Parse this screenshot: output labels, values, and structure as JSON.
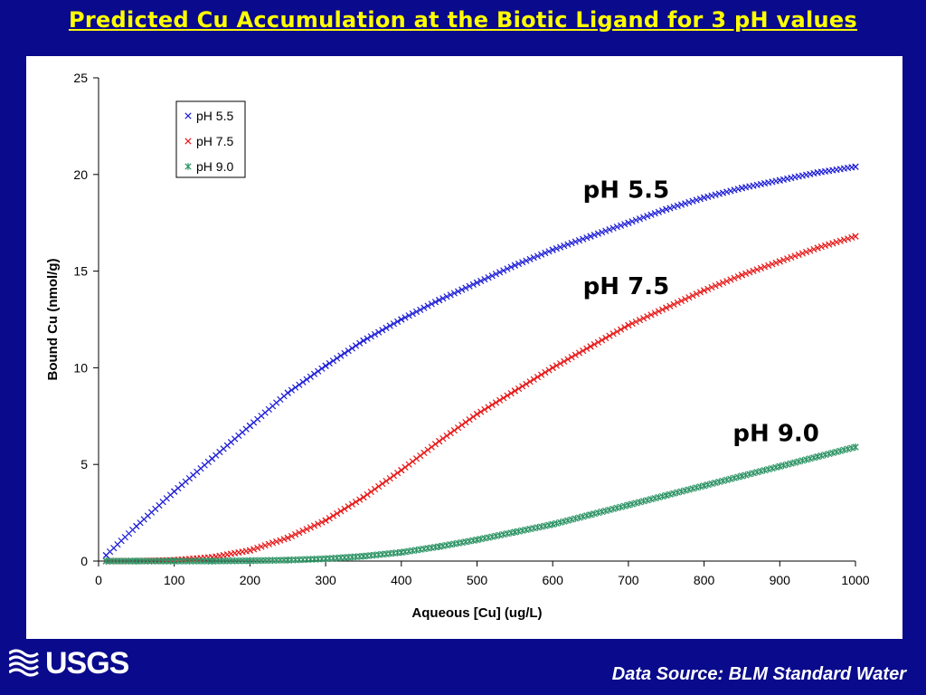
{
  "slide": {
    "title": "Predicted Cu Accumulation at the Biotic Ligand for 3 pH values",
    "source": "Data Source: BLM Standard Water",
    "logo_text": "USGS",
    "background_color": "#0a0a8c",
    "title_color": "#ffff00"
  },
  "chart_data": {
    "type": "scatter",
    "title": "",
    "xlabel": "Aqueous [Cu] (ug/L)",
    "ylabel": "Bound Cu (nmol/g)",
    "xlim": [
      0,
      1000
    ],
    "ylim": [
      0,
      25
    ],
    "x_ticks": [
      "0",
      "100",
      "200",
      "300",
      "400",
      "500",
      "600",
      "700",
      "800",
      "900",
      "1000"
    ],
    "y_ticks": [
      "0",
      "5",
      "10",
      "15",
      "20",
      "25"
    ],
    "grid": false,
    "legend_placement": "top-left",
    "series": [
      {
        "name": "pH 5.5",
        "color": "#1f1fd6",
        "marker": "x",
        "x": [
          10,
          50,
          100,
          150,
          200,
          250,
          300,
          350,
          400,
          450,
          500,
          550,
          600,
          650,
          700,
          750,
          800,
          850,
          900,
          950,
          1000
        ],
        "values": [
          0.3,
          1.8,
          3.6,
          5.3,
          7.0,
          8.7,
          10.1,
          11.4,
          12.5,
          13.5,
          14.4,
          15.3,
          16.1,
          16.8,
          17.5,
          18.2,
          18.8,
          19.3,
          19.7,
          20.1,
          20.4
        ]
      },
      {
        "name": "pH 7.5",
        "color": "#e61919",
        "marker": "x",
        "x": [
          10,
          50,
          100,
          150,
          200,
          250,
          300,
          350,
          400,
          450,
          500,
          550,
          600,
          650,
          700,
          750,
          800,
          850,
          900,
          950,
          1000
        ],
        "values": [
          0.0,
          0.0,
          0.05,
          0.2,
          0.55,
          1.2,
          2.1,
          3.3,
          4.7,
          6.2,
          7.6,
          8.8,
          10.0,
          11.1,
          12.2,
          13.1,
          14.0,
          14.8,
          15.5,
          16.2,
          16.8
        ]
      },
      {
        "name": "pH 9.0",
        "color": "#2e9466",
        "marker": "asterisk",
        "x": [
          10,
          50,
          100,
          150,
          200,
          250,
          300,
          350,
          400,
          450,
          500,
          550,
          600,
          650,
          700,
          750,
          800,
          850,
          900,
          950,
          1000
        ],
        "values": [
          0.0,
          0.0,
          0.0,
          0.0,
          0.02,
          0.05,
          0.12,
          0.25,
          0.45,
          0.75,
          1.1,
          1.5,
          1.9,
          2.4,
          2.9,
          3.4,
          3.9,
          4.4,
          4.9,
          5.4,
          5.9
        ]
      }
    ],
    "annotations": [
      {
        "text": "pH 5.5",
        "x": 640,
        "y": 18.8
      },
      {
        "text": "pH 7.5",
        "x": 640,
        "y": 13.8
      },
      {
        "text": "pH 9.0",
        "x": 838,
        "y": 6.2
      }
    ]
  }
}
